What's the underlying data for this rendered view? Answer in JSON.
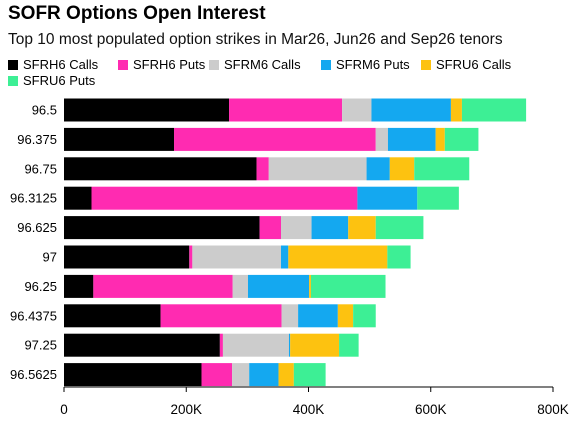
{
  "title": "SOFR Options Open Interest",
  "subtitle": "Top 10 most populated option strikes in Mar26, Jun26 and Sep26 tenors",
  "colors": {
    "SFRH6 Calls": "#000000",
    "SFRH6 Puts": "#ff2bb1",
    "SFRM6 Calls": "#cccccc",
    "SFRM6 Puts": "#14a8f0",
    "SFRU6 Calls": "#fdc210",
    "SFRU6 Puts": "#3def95"
  },
  "chart_data": {
    "type": "bar",
    "orientation": "horizontal",
    "stacked": true,
    "title": "SOFR Options Open Interest",
    "subtitle": "Top 10 most populated option strikes in Mar26, Jun26 and Sep26 tenors",
    "categories": [
      "96.5",
      "96.375",
      "96.75",
      "96.3125",
      "96.625",
      "97",
      "96.25",
      "96.4375",
      "97.25",
      "96.5625"
    ],
    "series": [
      {
        "name": "SFRH6 Calls",
        "values": [
          270000,
          180000,
          315000,
          45000,
          320000,
          205000,
          48000,
          158000,
          255000,
          225000
        ]
      },
      {
        "name": "SFRH6 Puts",
        "values": [
          185000,
          330000,
          20000,
          435000,
          35000,
          5000,
          228000,
          198000,
          5000,
          50000
        ]
      },
      {
        "name": "SFRM6 Calls",
        "values": [
          48000,
          20000,
          160000,
          0,
          50000,
          145000,
          25000,
          27000,
          108000,
          28000
        ]
      },
      {
        "name": "SFRM6 Puts",
        "values": [
          130000,
          78000,
          38000,
          98000,
          60000,
          12000,
          100000,
          65000,
          2000,
          48000
        ]
      },
      {
        "name": "SFRU6 Calls",
        "values": [
          18000,
          15000,
          40000,
          0,
          45000,
          162000,
          3000,
          25000,
          80000,
          25000
        ]
      },
      {
        "name": "SFRU6 Puts",
        "values": [
          105000,
          55000,
          90000,
          68000,
          78000,
          38000,
          122000,
          37000,
          32000,
          52000
        ]
      }
    ],
    "x_ticks": [
      "0",
      "200K",
      "400K",
      "600K",
      "800K"
    ],
    "xlim": [
      0,
      800000
    ],
    "grid": false,
    "legend_position": "top"
  }
}
